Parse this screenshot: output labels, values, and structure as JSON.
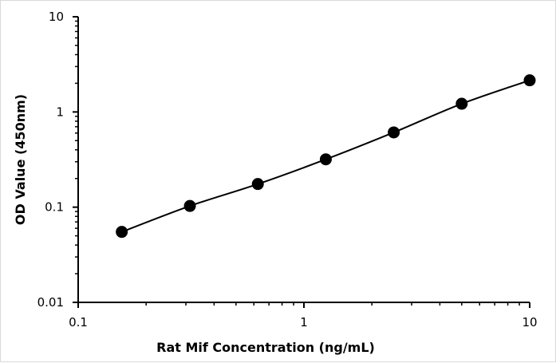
{
  "chart_data": {
    "type": "scatter",
    "title": "",
    "xlabel": "Rat Mif Concentration  (ng/mL)",
    "ylabel": "OD Value (450nm)",
    "x_scale": "log",
    "y_scale": "log",
    "xlim": [
      0.1,
      10
    ],
    "ylim": [
      0.01,
      10
    ],
    "x_ticks": [
      "0.1",
      "1",
      "10"
    ],
    "y_ticks": [
      "0.01",
      "0.1",
      "1",
      "10"
    ],
    "grid": false,
    "legend": "none",
    "series": [
      {
        "x": [
          0.156,
          0.3125,
          0.625,
          1.25,
          2.5,
          5,
          10
        ],
        "y": [
          0.055,
          0.103,
          0.175,
          0.318,
          0.61,
          1.22,
          2.15
        ],
        "color": "#000000",
        "marker": "circle",
        "line": "smooth"
      }
    ]
  }
}
